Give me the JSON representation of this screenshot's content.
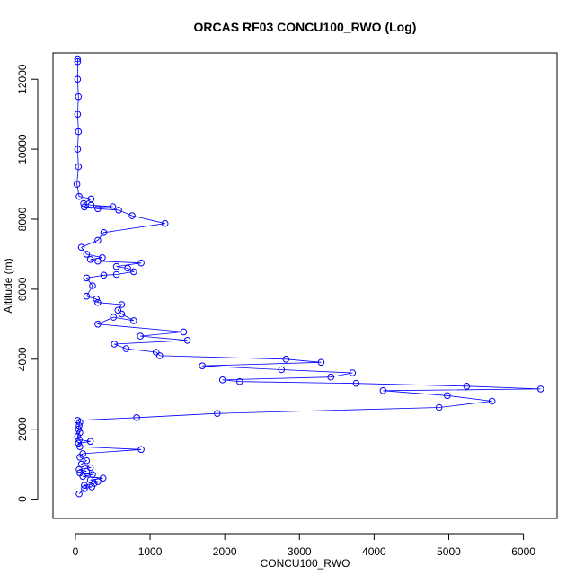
{
  "chart_data": {
    "type": "scatter",
    "title": "ORCAS RF03 CONCU100_RWO (Log)",
    "xlabel": "CONCU100_RWO",
    "ylabel": "Altitude (m)",
    "xlim": [
      -300,
      6450
    ],
    "ylim": [
      -550,
      12750
    ],
    "x_ticks": [
      0,
      1000,
      2000,
      3000,
      4000,
      5000,
      6000
    ],
    "y_ticks": [
      0,
      2000,
      4000,
      6000,
      8000,
      10000,
      12000
    ],
    "grid": false,
    "legend": "none",
    "marker": "open-circle",
    "connected": true,
    "color": "#0000ff",
    "series": [
      {
        "points": [
          [
            50,
            150
          ],
          [
            120,
            300
          ],
          [
            220,
            350
          ],
          [
            120,
            400
          ],
          [
            250,
            450
          ],
          [
            300,
            500
          ],
          [
            200,
            550
          ],
          [
            370,
            600
          ],
          [
            100,
            650
          ],
          [
            230,
            700
          ],
          [
            60,
            750
          ],
          [
            150,
            800
          ],
          [
            50,
            850
          ],
          [
            200,
            900
          ],
          [
            80,
            1000
          ],
          [
            150,
            1100
          ],
          [
            60,
            1200
          ],
          [
            100,
            1300
          ],
          [
            880,
            1420
          ],
          [
            60,
            1500
          ],
          [
            40,
            1600
          ],
          [
            200,
            1650
          ],
          [
            50,
            1700
          ],
          [
            30,
            1800
          ],
          [
            60,
            1900
          ],
          [
            40,
            2000
          ],
          [
            50,
            2100
          ],
          [
            60,
            2200
          ],
          [
            30,
            2250
          ],
          [
            820,
            2330
          ],
          [
            1900,
            2450
          ],
          [
            4870,
            2620
          ],
          [
            5580,
            2800
          ],
          [
            4980,
            2960
          ],
          [
            4120,
            3100
          ],
          [
            6230,
            3150
          ],
          [
            5240,
            3230
          ],
          [
            3760,
            3310
          ],
          [
            2200,
            3360
          ],
          [
            1970,
            3410
          ],
          [
            3420,
            3490
          ],
          [
            3710,
            3610
          ],
          [
            2760,
            3700
          ],
          [
            1700,
            3810
          ],
          [
            3290,
            3910
          ],
          [
            2820,
            4000
          ],
          [
            1130,
            4100
          ],
          [
            1080,
            4200
          ],
          [
            680,
            4300
          ],
          [
            520,
            4430
          ],
          [
            1500,
            4540
          ],
          [
            870,
            4660
          ],
          [
            1450,
            4780
          ],
          [
            300,
            5000
          ],
          [
            510,
            5200
          ],
          [
            780,
            5100
          ],
          [
            620,
            5290
          ],
          [
            570,
            5400
          ],
          [
            620,
            5560
          ],
          [
            300,
            5620
          ],
          [
            280,
            5720
          ],
          [
            150,
            5800
          ],
          [
            230,
            6100
          ],
          [
            150,
            6320
          ],
          [
            380,
            6400
          ],
          [
            550,
            6420
          ],
          [
            780,
            6500
          ],
          [
            700,
            6600
          ],
          [
            550,
            6650
          ],
          [
            880,
            6750
          ],
          [
            300,
            6800
          ],
          [
            200,
            6850
          ],
          [
            360,
            6900
          ],
          [
            150,
            7000
          ],
          [
            80,
            7200
          ],
          [
            300,
            7400
          ],
          [
            380,
            7620
          ],
          [
            1200,
            7880
          ],
          [
            760,
            8100
          ],
          [
            580,
            8260
          ],
          [
            300,
            8300
          ],
          [
            120,
            8350
          ],
          [
            500,
            8360
          ],
          [
            210,
            8400
          ],
          [
            110,
            8450
          ],
          [
            210,
            8580
          ],
          [
            50,
            8650
          ],
          [
            20,
            9000
          ],
          [
            40,
            9500
          ],
          [
            30,
            10000
          ],
          [
            40,
            10500
          ],
          [
            30,
            11000
          ],
          [
            40,
            11500
          ],
          [
            30,
            12000
          ],
          [
            30,
            12500
          ],
          [
            30,
            12580
          ]
        ]
      }
    ]
  }
}
